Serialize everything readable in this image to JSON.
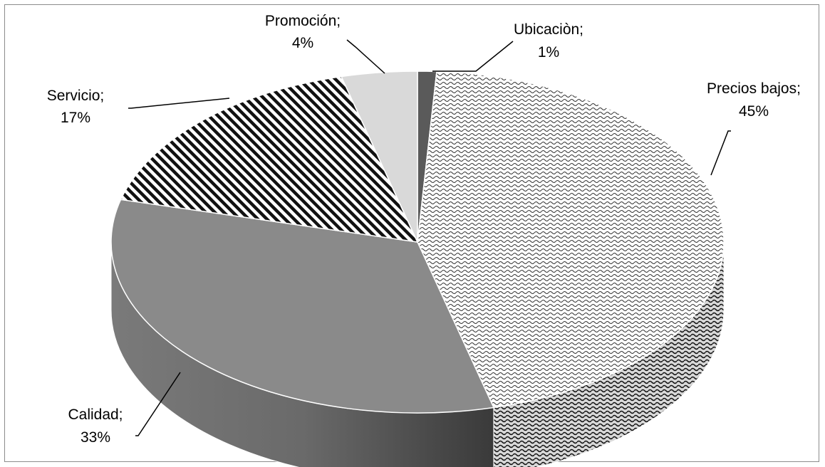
{
  "chart_data": {
    "type": "pie",
    "style": "3d",
    "title": "",
    "legend": "none",
    "slices": [
      {
        "label": "Ubicaciòn;",
        "pct_text": "1%",
        "value": 1,
        "fill": "#5a5a5a"
      },
      {
        "label": "Precios bajos;",
        "pct_text": "45%",
        "value": 45,
        "fill": "pattern-wave"
      },
      {
        "label": "Calidad;",
        "pct_text": "33%",
        "value": 33,
        "fill": "#8a8a8a"
      },
      {
        "label": "Servicio;",
        "pct_text": "17%",
        "value": 17,
        "fill": "pattern-diagonal-stripes"
      },
      {
        "label": "Promoción;",
        "pct_text": "4%",
        "value": 4,
        "fill": "#d9d9d9"
      }
    ]
  }
}
